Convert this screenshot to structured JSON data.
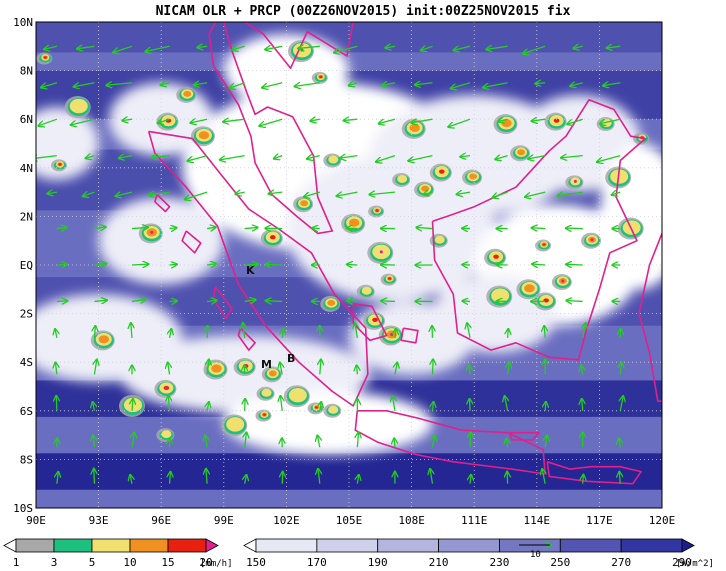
{
  "title": "NICAM OLR + PRCP (00Z26NOV2015) init:00Z25NOV2015 fix",
  "map": {
    "lon_range": [
      90,
      120
    ],
    "lat_range": [
      -10,
      10
    ],
    "lon_ticks": [
      "90E",
      "93E",
      "96E",
      "99E",
      "102E",
      "105E",
      "108E",
      "111E",
      "114E",
      "117E",
      "120E"
    ],
    "lat_ticks": [
      "10N",
      "8N",
      "6N",
      "4N",
      "2N",
      "EQ",
      "2S",
      "4S",
      "6S",
      "8S",
      "10S"
    ],
    "grid": "dotted",
    "coastline_color": "#e0208c",
    "vector_color": "#22cc22"
  },
  "labels": {
    "K": "K",
    "M": "M",
    "B": "B"
  },
  "precip_scale": {
    "values": [
      "1",
      "3",
      "5",
      "10",
      "15",
      "20"
    ],
    "unit": "[mm/h]",
    "colors": [
      "#ffffff",
      "#a8a8a8",
      "#1ec080",
      "#f0e070",
      "#f09020",
      "#e82010",
      "#e0208c"
    ]
  },
  "olr_scale": {
    "values": [
      "150",
      "170",
      "190",
      "210",
      "230",
      "250",
      "270",
      "290"
    ],
    "unit": "[W/m^2]",
    "colors": [
      "#ffffff",
      "#e8e8f4",
      "#cfd0ea",
      "#b4b6df",
      "#9598d0",
      "#7478c2",
      "#5256b2",
      "#3236a2",
      "#1c1e8e"
    ],
    "ref_vector": "10"
  },
  "bands": [
    {
      "lat": 9.5,
      "span": 1.5,
      "alpha": 0.35
    },
    {
      "lat": 7.0,
      "span": 2.0,
      "alpha": 0.55
    },
    {
      "lat": 3.5,
      "span": 2.5,
      "alpha": 0.4
    },
    {
      "lat": -1.5,
      "span": 2.0,
      "alpha": 0.35
    },
    {
      "lat": -5.5,
      "span": 1.5,
      "alpha": 0.75
    },
    {
      "lat": -8.5,
      "span": 1.5,
      "alpha": 0.9
    }
  ]
}
